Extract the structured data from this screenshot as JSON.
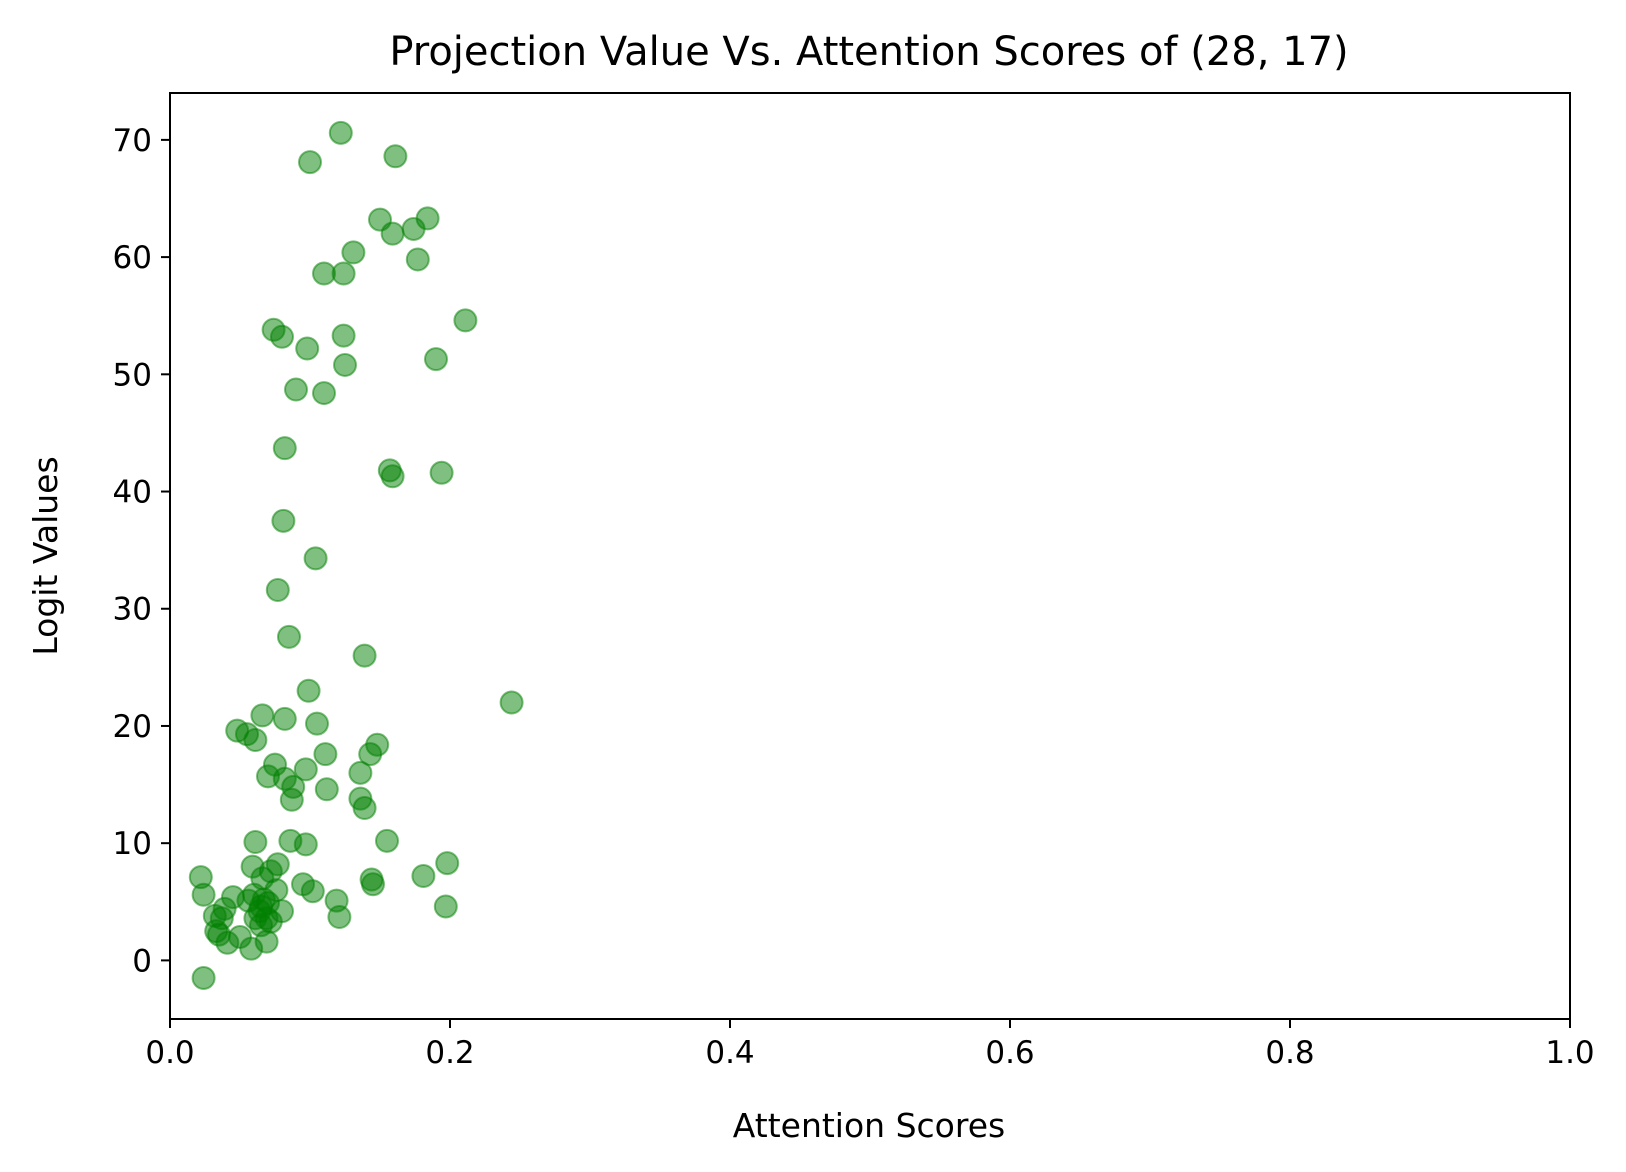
{
  "chart_data": {
    "type": "scatter",
    "title": "Projection Value Vs. Attention Scores of (28, 17)",
    "xlabel": "Attention Scores",
    "ylabel": "Logit Values",
    "xlim": [
      0.0,
      1.0
    ],
    "ylim": [
      -5,
      74
    ],
    "xticks": [
      "0.0",
      "0.2",
      "0.4",
      "0.6",
      "0.8",
      "1.0"
    ],
    "yticks": [
      "0",
      "10",
      "20",
      "30",
      "40",
      "50",
      "60",
      "70"
    ],
    "grid": false,
    "marker_color": "#008000",
    "marker_alpha": 0.5,
    "series": [
      {
        "name": "",
        "points": [
          [
            0.122,
            70.6
          ],
          [
            0.1,
            68.1
          ],
          [
            0.161,
            68.6
          ],
          [
            0.15,
            63.2
          ],
          [
            0.184,
            63.3
          ],
          [
            0.174,
            62.4
          ],
          [
            0.159,
            62.0
          ],
          [
            0.131,
            60.4
          ],
          [
            0.177,
            59.8
          ],
          [
            0.11,
            58.6
          ],
          [
            0.124,
            58.6
          ],
          [
            0.211,
            54.6
          ],
          [
            0.074,
            53.8
          ],
          [
            0.08,
            53.2
          ],
          [
            0.124,
            53.3
          ],
          [
            0.098,
            52.2
          ],
          [
            0.125,
            50.8
          ],
          [
            0.19,
            51.3
          ],
          [
            0.09,
            48.7
          ],
          [
            0.11,
            48.4
          ],
          [
            0.082,
            43.7
          ],
          [
            0.157,
            41.8
          ],
          [
            0.159,
            41.3
          ],
          [
            0.194,
            41.6
          ],
          [
            0.081,
            37.5
          ],
          [
            0.104,
            34.3
          ],
          [
            0.077,
            31.6
          ],
          [
            0.085,
            27.6
          ],
          [
            0.139,
            26.0
          ],
          [
            0.244,
            22.0
          ],
          [
            0.099,
            23.0
          ],
          [
            0.066,
            20.9
          ],
          [
            0.082,
            20.6
          ],
          [
            0.105,
            20.2
          ],
          [
            0.048,
            19.6
          ],
          [
            0.055,
            19.3
          ],
          [
            0.061,
            18.8
          ],
          [
            0.148,
            18.4
          ],
          [
            0.143,
            17.6
          ],
          [
            0.111,
            17.6
          ],
          [
            0.075,
            16.7
          ],
          [
            0.097,
            16.3
          ],
          [
            0.136,
            16.0
          ],
          [
            0.07,
            15.7
          ],
          [
            0.082,
            15.5
          ],
          [
            0.088,
            14.8
          ],
          [
            0.112,
            14.6
          ],
          [
            0.087,
            13.7
          ],
          [
            0.136,
            13.8
          ],
          [
            0.139,
            13.0
          ],
          [
            0.155,
            10.2
          ],
          [
            0.061,
            10.1
          ],
          [
            0.086,
            10.2
          ],
          [
            0.097,
            9.9
          ],
          [
            0.077,
            8.2
          ],
          [
            0.198,
            8.3
          ],
          [
            0.059,
            8.0
          ],
          [
            0.072,
            7.6
          ],
          [
            0.181,
            7.2
          ],
          [
            0.022,
            7.1
          ],
          [
            0.066,
            7.0
          ],
          [
            0.144,
            6.9
          ],
          [
            0.145,
            6.5
          ],
          [
            0.095,
            6.5
          ],
          [
            0.076,
            6.0
          ],
          [
            0.102,
            5.9
          ],
          [
            0.024,
            5.6
          ],
          [
            0.045,
            5.4
          ],
          [
            0.06,
            5.6
          ],
          [
            0.067,
            5.2
          ],
          [
            0.119,
            5.1
          ],
          [
            0.056,
            5.1
          ],
          [
            0.07,
            4.9
          ],
          [
            0.065,
            4.6
          ],
          [
            0.197,
            4.6
          ],
          [
            0.039,
            4.4
          ],
          [
            0.064,
            4.2
          ],
          [
            0.08,
            4.2
          ],
          [
            0.032,
            3.8
          ],
          [
            0.037,
            3.6
          ],
          [
            0.061,
            3.6
          ],
          [
            0.069,
            3.6
          ],
          [
            0.121,
            3.7
          ],
          [
            0.072,
            3.3
          ],
          [
            0.065,
            3.0
          ],
          [
            0.033,
            2.5
          ],
          [
            0.035,
            2.2
          ],
          [
            0.05,
            2.0
          ],
          [
            0.041,
            1.5
          ],
          [
            0.069,
            1.6
          ],
          [
            0.058,
            1.0
          ],
          [
            0.024,
            -1.5
          ]
        ]
      }
    ]
  }
}
